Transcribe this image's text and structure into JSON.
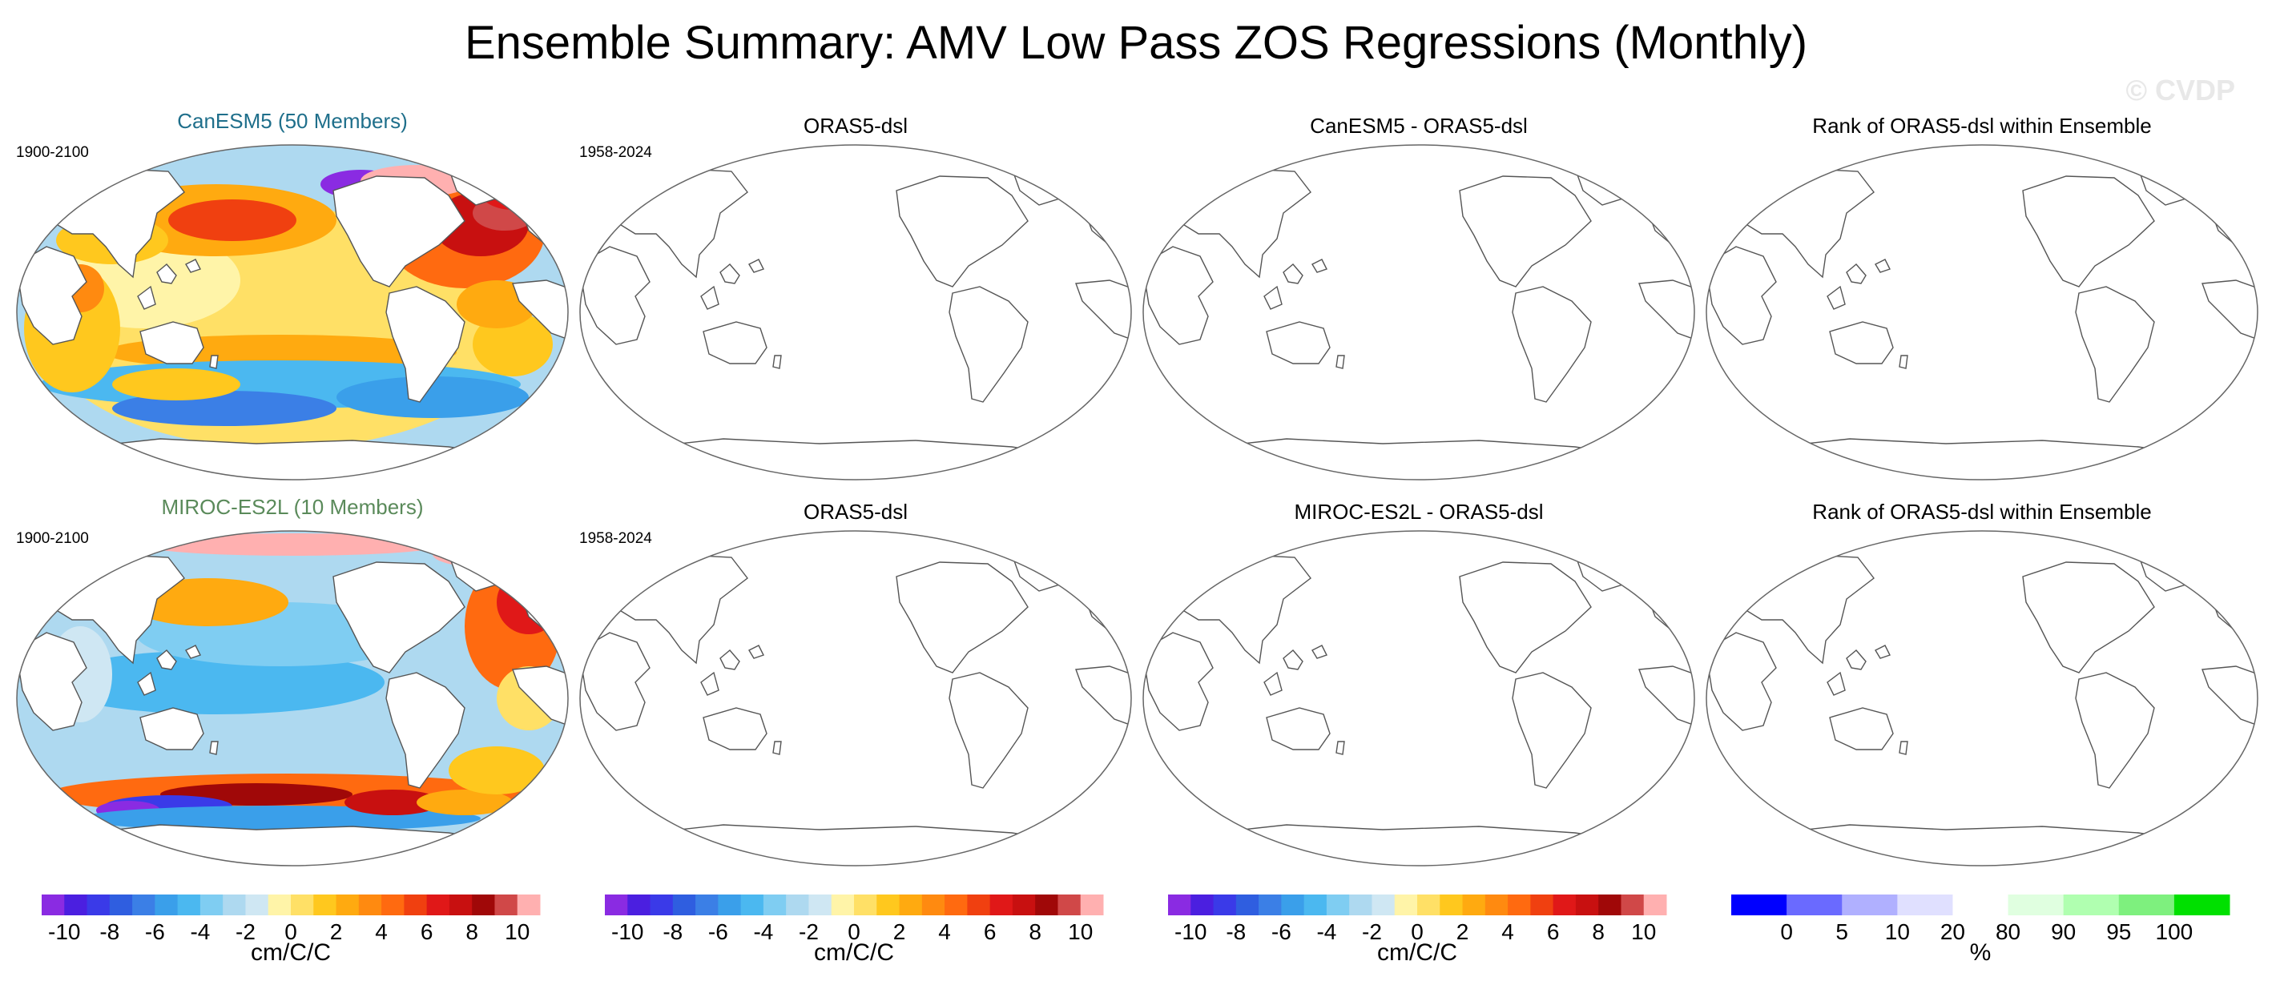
{
  "title": "Ensemble Summary: AMV Low Pass ZOS Regressions (Monthly)",
  "watermark": "© CVDP",
  "panels": [
    {
      "title": "CanESM5 (50 Members)",
      "title_color": "#1f6f8b",
      "period": "1900-2100",
      "filled": true
    },
    {
      "title": "ORAS5-dsl",
      "title_color": "#000000",
      "period": "1958-2024",
      "filled": false
    },
    {
      "title": "CanESM5 - ORAS5-dsl",
      "title_color": "#000000",
      "period": "",
      "filled": false
    },
    {
      "title": "Rank of ORAS5-dsl within Ensemble",
      "title_color": "#000000",
      "period": "",
      "filled": false
    },
    {
      "title": "MIROC-ES2L (10 Members)",
      "title_color": "#5a8a5a",
      "period": "1900-2100",
      "filled": true
    },
    {
      "title": "ORAS5-dsl",
      "title_color": "#000000",
      "period": "1958-2024",
      "filled": false
    },
    {
      "title": "MIROC-ES2L - ORAS5-dsl",
      "title_color": "#000000",
      "period": "",
      "filled": false
    },
    {
      "title": "Rank of ORAS5-dsl within Ensemble",
      "title_color": "#000000",
      "period": "",
      "filled": false
    }
  ],
  "colorbars": [
    {
      "unit": "cm/C/C",
      "labels": [
        "-10",
        "-8",
        "-6",
        "-4",
        "-2",
        "0",
        "2",
        "4",
        "6",
        "8",
        "10"
      ],
      "colors": [
        "#8a2be2",
        "#4b1fe0",
        "#3a3ae8",
        "#2f5ee0",
        "#3b7fe6",
        "#3a9fea",
        "#4bb8f0",
        "#7fcdf2",
        "#aed9f0",
        "#cfe7f3",
        "#fff4a8",
        "#ffe066",
        "#ffc81e",
        "#ffaa10",
        "#ff8a10",
        "#ff6a10",
        "#f04010",
        "#e01818",
        "#c81010",
        "#a00808",
        "#d04848",
        "#ffb0b0"
      ]
    },
    {
      "unit": "cm/C/C",
      "labels": [
        "-10",
        "-8",
        "-6",
        "-4",
        "-2",
        "0",
        "2",
        "4",
        "6",
        "8",
        "10"
      ],
      "colors": [
        "#8a2be2",
        "#4b1fe0",
        "#3a3ae8",
        "#2f5ee0",
        "#3b7fe6",
        "#3a9fea",
        "#4bb8f0",
        "#7fcdf2",
        "#aed9f0",
        "#cfe7f3",
        "#fff4a8",
        "#ffe066",
        "#ffc81e",
        "#ffaa10",
        "#ff8a10",
        "#ff6a10",
        "#f04010",
        "#e01818",
        "#c81010",
        "#a00808",
        "#d04848",
        "#ffb0b0"
      ]
    },
    {
      "unit": "cm/C/C",
      "labels": [
        "-10",
        "-8",
        "-6",
        "-4",
        "-2",
        "0",
        "2",
        "4",
        "6",
        "8",
        "10"
      ],
      "colors": [
        "#8a2be2",
        "#4b1fe0",
        "#3a3ae8",
        "#2f5ee0",
        "#3b7fe6",
        "#3a9fea",
        "#4bb8f0",
        "#7fcdf2",
        "#aed9f0",
        "#cfe7f3",
        "#fff4a8",
        "#ffe066",
        "#ffc81e",
        "#ffaa10",
        "#ff8a10",
        "#ff6a10",
        "#f04010",
        "#e01818",
        "#c81010",
        "#a00808",
        "#d04848",
        "#ffb0b0"
      ]
    },
    {
      "unit": "%",
      "labels": [
        "0",
        "5",
        "10",
        "20",
        "80",
        "90",
        "95",
        "100"
      ],
      "colors": [
        "#0000ff",
        "#6a6aff",
        "#b0b0ff",
        "#e0e0ff",
        "#ffffff",
        "#e0ffe0",
        "#b0ffb0",
        "#7ef07e",
        "#00e000"
      ]
    }
  ]
}
